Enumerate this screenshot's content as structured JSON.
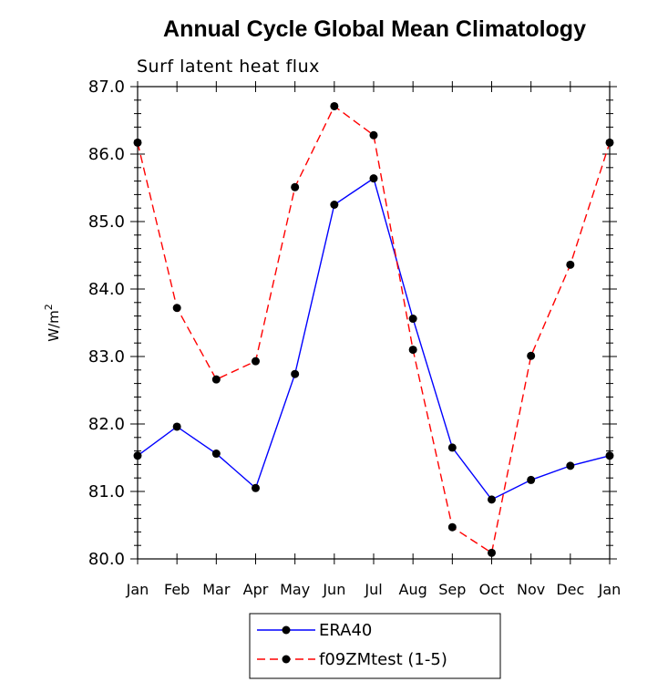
{
  "chart_data": {
    "type": "line",
    "title": "Annual Cycle Global Mean Climatology",
    "subtitle": "Surf latent heat flux",
    "ylabel": "W/m",
    "ylabel_sup": "2",
    "xlabel": "",
    "categories": [
      "Jan",
      "Feb",
      "Mar",
      "Apr",
      "May",
      "Jun",
      "Jul",
      "Aug",
      "Sep",
      "Oct",
      "Nov",
      "Dec",
      "Jan"
    ],
    "ylim": [
      80.0,
      87.0
    ],
    "yticks": [
      "80.0",
      "81.0",
      "82.0",
      "83.0",
      "84.0",
      "85.0",
      "86.0",
      "87.0"
    ],
    "series": [
      {
        "name": "ERA40",
        "color": "#0000ff",
        "style": "solid",
        "values": [
          81.53,
          81.96,
          81.56,
          81.05,
          82.74,
          85.25,
          85.64,
          83.56,
          81.65,
          80.88,
          81.17,
          81.38,
          81.53
        ]
      },
      {
        "name": "f09ZMtest (1-5)",
        "color": "#ff0000",
        "style": "dashed",
        "values": [
          86.17,
          83.72,
          82.66,
          82.93,
          85.51,
          86.71,
          86.28,
          83.1,
          80.47,
          80.09,
          83.01,
          84.36,
          86.17
        ]
      }
    ],
    "legend_position": "bottom-center",
    "marker_color": "#000000"
  }
}
